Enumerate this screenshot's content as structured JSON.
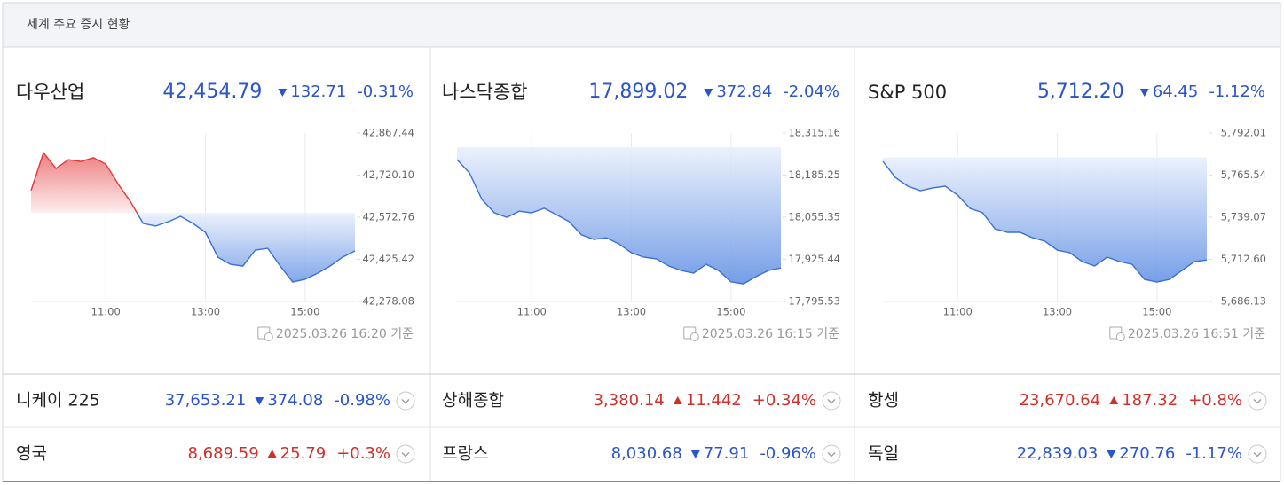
{
  "header": {
    "title": "세계 주요 증시 현황"
  },
  "indices": [
    {
      "name": "다우산업",
      "price": "42,454.79",
      "direction": "down",
      "change": "132.71",
      "change_pct": "-0.31%",
      "timestamp": "2025.03.26 16:20",
      "timestamp_suffix": "기준",
      "chart": {
        "type": "line",
        "up_color": "#e5383b",
        "down_color": "#3a6fd8",
        "x": [
          "09:30",
          "09:45",
          "10:00",
          "10:15",
          "10:30",
          "10:45",
          "11:00",
          "11:15",
          "11:30",
          "11:45",
          "12:00",
          "12:15",
          "12:30",
          "12:45",
          "13:00",
          "13:15",
          "13:30",
          "13:45",
          "14:00",
          "14:15",
          "14:30",
          "14:45",
          "15:00",
          "15:15",
          "15:30",
          "15:45",
          "16:00"
        ],
        "values": [
          42666,
          42799,
          42743,
          42774,
          42768,
          42781,
          42759,
          42688,
          42626,
          42551,
          42542,
          42557,
          42576,
          42551,
          42520,
          42433,
          42408,
          42402,
          42458,
          42464,
          42402,
          42346,
          42356,
          42377,
          42402,
          42433,
          42455
        ],
        "xlim": [
          "09:30",
          "16:00"
        ],
        "xticks": [
          "11:00",
          "13:00",
          "15:00"
        ],
        "ylim": [
          42278.08,
          42867.44
        ],
        "yticks": [
          {
            "value": 42278.08,
            "label": "42,278.08"
          },
          {
            "value": 42425.42,
            "label": "42,425.42"
          },
          {
            "value": 42572.76,
            "label": "42,572.76"
          },
          {
            "value": 42720.1,
            "label": "42,720.10"
          },
          {
            "value": 42867.44,
            "label": "42,867.44"
          }
        ]
      }
    },
    {
      "name": "나스닥종합",
      "price": "17,899.02",
      "direction": "down",
      "change": "372.84",
      "change_pct": "-2.04%",
      "timestamp": "2025.03.26 16:15",
      "timestamp_suffix": "기준",
      "chart": {
        "type": "line",
        "up_color": "#e5383b",
        "down_color": "#3a6fd8",
        "x": [
          "09:30",
          "09:45",
          "10:00",
          "10:15",
          "10:30",
          "10:45",
          "11:00",
          "11:15",
          "11:30",
          "11:45",
          "12:00",
          "12:15",
          "12:30",
          "12:45",
          "13:00",
          "13:15",
          "13:30",
          "13:45",
          "14:00",
          "14:15",
          "14:30",
          "14:45",
          "15:00",
          "15:15",
          "15:30",
          "15:45",
          "16:00"
        ],
        "values": [
          18233,
          18192,
          18110,
          18069,
          18055,
          18074,
          18069,
          18083,
          18063,
          18042,
          18001,
          17987,
          17992,
          17973,
          17946,
          17932,
          17927,
          17905,
          17891,
          17883,
          17910,
          17891,
          17856,
          17850,
          17872,
          17891,
          17899
        ],
        "xlim": [
          "09:30",
          "16:00"
        ],
        "xticks": [
          "11:00",
          "13:00",
          "15:00"
        ],
        "ylim": [
          17795.53,
          18315.16
        ],
        "yticks": [
          {
            "value": 17795.53,
            "label": "17,795.53"
          },
          {
            "value": 17925.44,
            "label": "17,925.44"
          },
          {
            "value": 18055.35,
            "label": "18,055.35"
          },
          {
            "value": 18185.25,
            "label": "18,185.25"
          },
          {
            "value": 18315.16,
            "label": "18,315.16"
          }
        ]
      }
    },
    {
      "name": "S&P 500",
      "price": "5,712.20",
      "direction": "down",
      "change": "64.45",
      "change_pct": "-1.12%",
      "timestamp": "2025.03.26 16:51",
      "timestamp_suffix": "기준",
      "chart": {
        "type": "line",
        "up_color": "#e5383b",
        "down_color": "#3a6fd8",
        "x": [
          "09:30",
          "09:45",
          "10:00",
          "10:15",
          "10:30",
          "10:45",
          "11:00",
          "11:15",
          "11:30",
          "11:45",
          "12:00",
          "12:15",
          "12:30",
          "12:45",
          "13:00",
          "13:15",
          "13:30",
          "13:45",
          "14:00",
          "14:15",
          "14:30",
          "14:45",
          "15:00",
          "15:15",
          "15:30",
          "15:45",
          "16:00"
        ],
        "values": [
          5774.2,
          5764.1,
          5758.6,
          5755.8,
          5757.5,
          5758.6,
          5753.0,
          5744.6,
          5741.9,
          5731.8,
          5729.6,
          5729.6,
          5726.2,
          5724.0,
          5718.4,
          5716.8,
          5711.2,
          5708.4,
          5714.0,
          5711.2,
          5709.5,
          5700.0,
          5698.4,
          5700.0,
          5705.6,
          5711.2,
          5712.2
        ],
        "xlim": [
          "09:30",
          "16:00"
        ],
        "xticks": [
          "11:00",
          "13:00",
          "15:00"
        ],
        "ylim": [
          5686.13,
          5792.01
        ],
        "yticks": [
          {
            "value": 5686.13,
            "label": "5,686.13"
          },
          {
            "value": 5712.6,
            "label": "5,712.60"
          },
          {
            "value": 5739.07,
            "label": "5,739.07"
          },
          {
            "value": 5765.54,
            "label": "5,765.54"
          },
          {
            "value": 5792.01,
            "label": "5,792.01"
          }
        ]
      }
    }
  ],
  "rows": [
    [
      {
        "name": "니케이 225",
        "price": "37,653.21",
        "direction": "down",
        "change": "374.08",
        "change_pct": "-0.98%"
      },
      {
        "name": "상해종합",
        "price": "3,380.14",
        "direction": "up",
        "change": "11.442",
        "change_pct": "+0.34%"
      },
      {
        "name": "항셍",
        "price": "23,670.64",
        "direction": "up",
        "change": "187.32",
        "change_pct": "+0.8%"
      }
    ],
    [
      {
        "name": "영국",
        "price": "8,689.59",
        "direction": "up",
        "change": "25.79",
        "change_pct": "+0.3%"
      },
      {
        "name": "프랑스",
        "price": "8,030.68",
        "direction": "down",
        "change": "77.91",
        "change_pct": "-0.96%"
      },
      {
        "name": "독일",
        "price": "22,839.03",
        "direction": "down",
        "change": "270.76",
        "change_pct": "-1.17%"
      }
    ]
  ]
}
